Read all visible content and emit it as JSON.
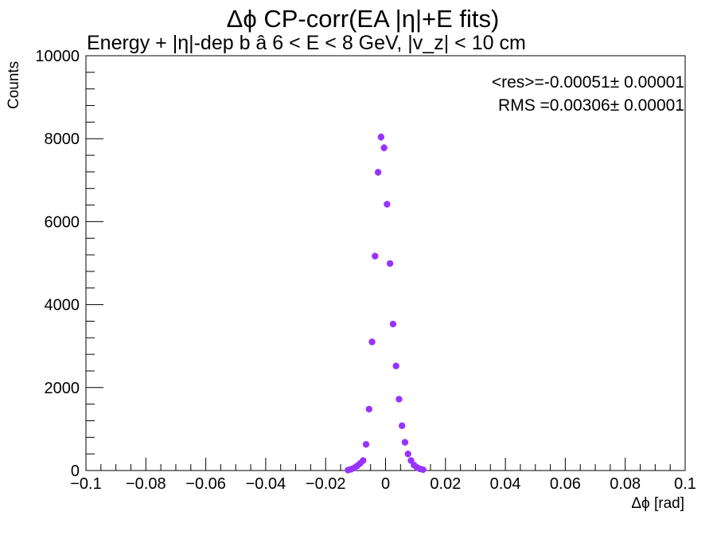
{
  "chart_data": {
    "type": "scatter",
    "title": "Δϕ CP-corr(EA |η|+E fits)",
    "subtitle": "Energy + |η|-dep b  â  6 < E < 8 GeV, |v_z| < 10 cm",
    "xlabel": "Δϕ  [rad]",
    "ylabel": "Counts",
    "xlim": [
      -0.1,
      0.1
    ],
    "ylim": [
      0,
      10000
    ],
    "x_ticks": [
      "−0.1",
      "−0.08",
      "−0.06",
      "−0.04",
      "−0.02",
      "0",
      "0.02",
      "0.04",
      "0.06",
      "0.08",
      "0.1"
    ],
    "y_ticks": [
      "0",
      "2000",
      "4000",
      "6000",
      "8000",
      "10000"
    ],
    "stats": {
      "mean": "<res>=-0.00051± 0.00001",
      "rms": "RMS =0.00306± 0.00001"
    },
    "marker_color": "#9933ff",
    "series": [
      {
        "x": [
          -0.0125,
          -0.0115,
          -0.0105,
          -0.0095,
          -0.0085,
          -0.0075,
          -0.0065,
          -0.0055,
          -0.0045,
          -0.0035,
          -0.0025,
          -0.0015,
          -0.0005,
          0.0005,
          0.0015,
          0.0025,
          0.0035,
          0.0045,
          0.0055,
          0.0065,
          0.0075,
          0.0085,
          0.0095,
          0.0105,
          0.0115,
          0.0125
        ],
        "y": [
          10,
          30,
          60,
          110,
          170,
          240,
          630,
          1480,
          3100,
          5170,
          7190,
          8040,
          7780,
          6420,
          4990,
          3530,
          2520,
          1720,
          1080,
          680,
          400,
          240,
          130,
          70,
          40,
          20
        ],
        "err": [
          3,
          6,
          8,
          10,
          13,
          16,
          25,
          38,
          56,
          72,
          85,
          90,
          88,
          80,
          71,
          59,
          50,
          41,
          33,
          26,
          20,
          15,
          11,
          8,
          6,
          4
        ]
      }
    ]
  }
}
